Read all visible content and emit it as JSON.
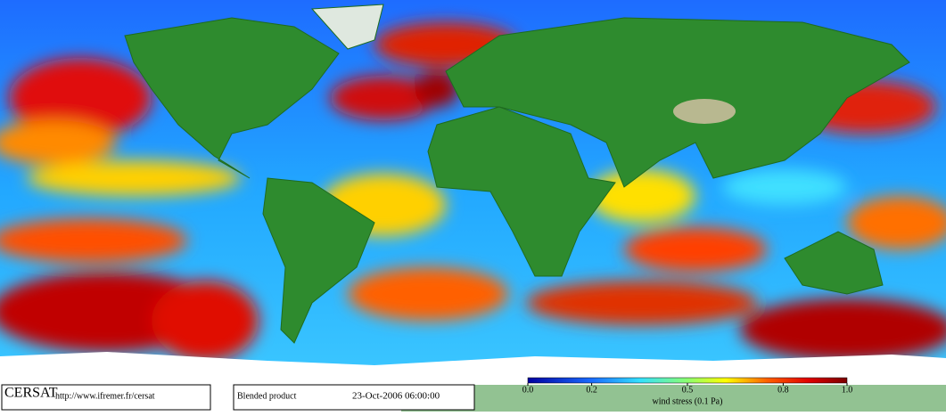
{
  "footer": {
    "logo": "CERSAT",
    "url": "http://www.ifremer.fr/cersat",
    "product": "Blended product",
    "date": "23-Oct-2006 06:00:00"
  },
  "colorbar": {
    "range": [
      0,
      1
    ],
    "ticks": [
      {
        "value": 0,
        "label": "0.0"
      },
      0.2,
      0.5,
      0.8,
      {
        "value": 1,
        "label": "1.0"
      }
    ],
    "label": "wind stress (0.1 Pa)"
  }
}
